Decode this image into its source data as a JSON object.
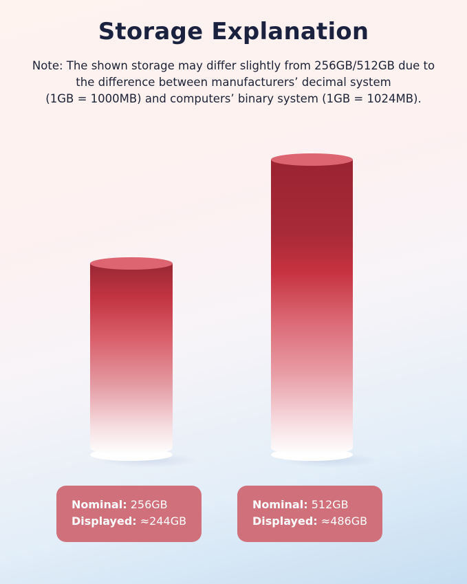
{
  "title": "Storage Explanation",
  "note_lines": [
    "Note: The shown storage may differ slightly from 256GB/512GB due to",
    "the difference between manufacturers’ decimal system",
    "(1GB = 1000MB) and computers’ binary system (1GB = 1024MB)."
  ],
  "colors": {
    "title": "#1b2240",
    "bar_dark": "#9a2432",
    "bar_top": "#dd6571",
    "label_bg": "#cf707a"
  },
  "items": [
    {
      "nominal_label": "Nominal:",
      "nominal_value": "256GB",
      "displayed_label": "Displayed:",
      "displayed_value": "≈244GB"
    },
    {
      "nominal_label": "Nominal:",
      "nominal_value": "512GB",
      "displayed_label": "Displayed:",
      "displayed_value": "≈486GB"
    }
  ]
}
